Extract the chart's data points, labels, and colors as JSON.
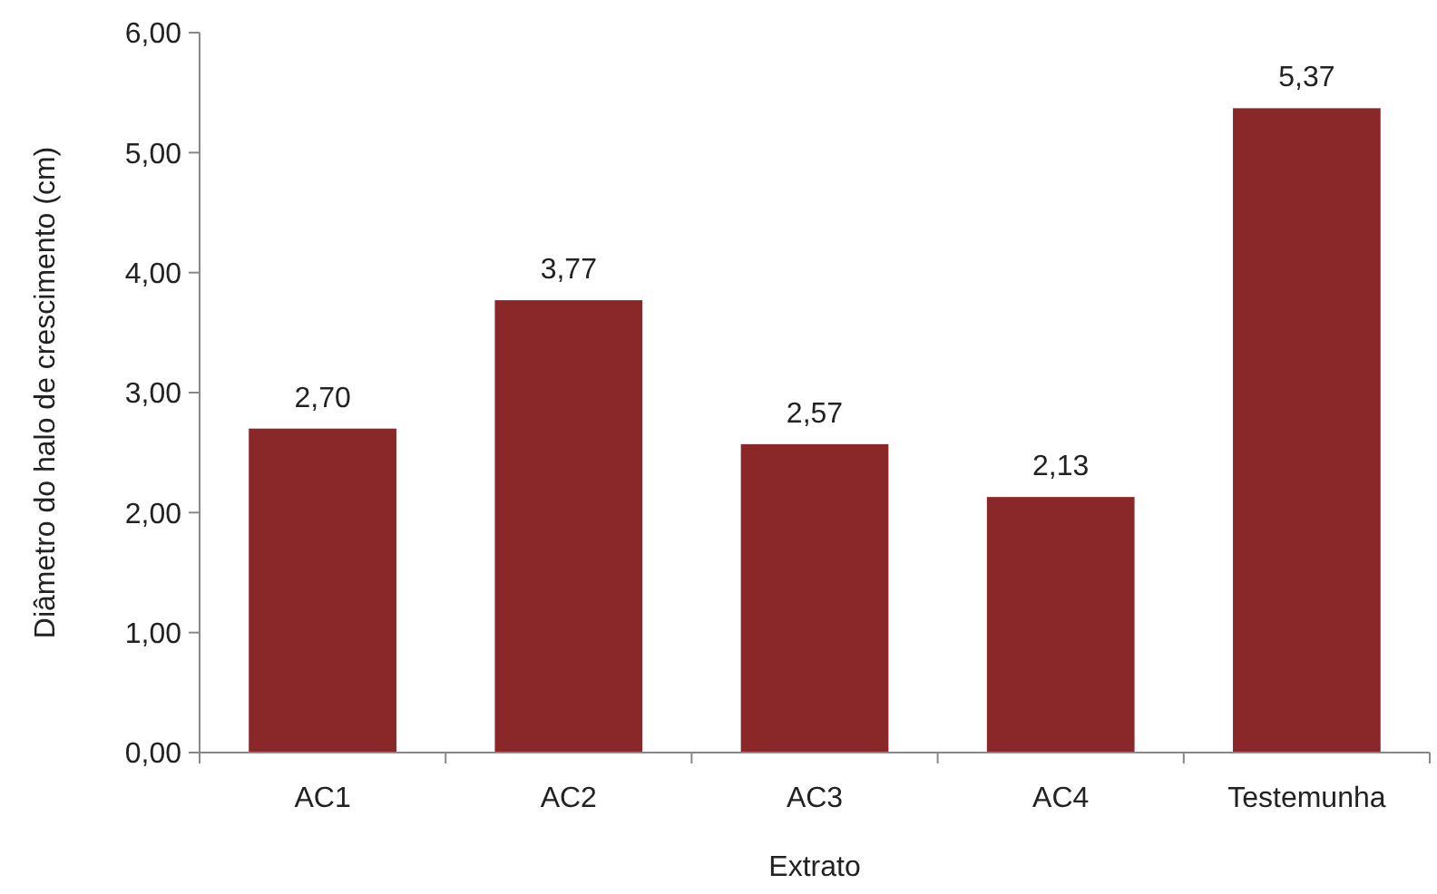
{
  "chart_data": {
    "type": "bar",
    "xlabel": "Extrato",
    "ylabel": "Diâmetro do halo de crescimento (cm)",
    "categories": [
      "AC1",
      "AC2",
      "AC3",
      "AC4",
      "Testemunha"
    ],
    "values": [
      2.7,
      3.77,
      2.57,
      2.13,
      5.37
    ],
    "value_labels": [
      "2,70",
      "3,77",
      "2,57",
      "2,13",
      "5,37"
    ],
    "color": "#8a2729",
    "ylim": [
      0,
      6
    ],
    "yticks": [
      {
        "value": 0,
        "label": "0,00"
      },
      {
        "value": 1,
        "label": "1,00"
      },
      {
        "value": 2,
        "label": "2,00"
      },
      {
        "value": 3,
        "label": "3,00"
      },
      {
        "value": 4,
        "label": "4,00"
      },
      {
        "value": 5,
        "label": "5,00"
      },
      {
        "value": 6,
        "label": "6,00"
      }
    ],
    "grid": false
  }
}
